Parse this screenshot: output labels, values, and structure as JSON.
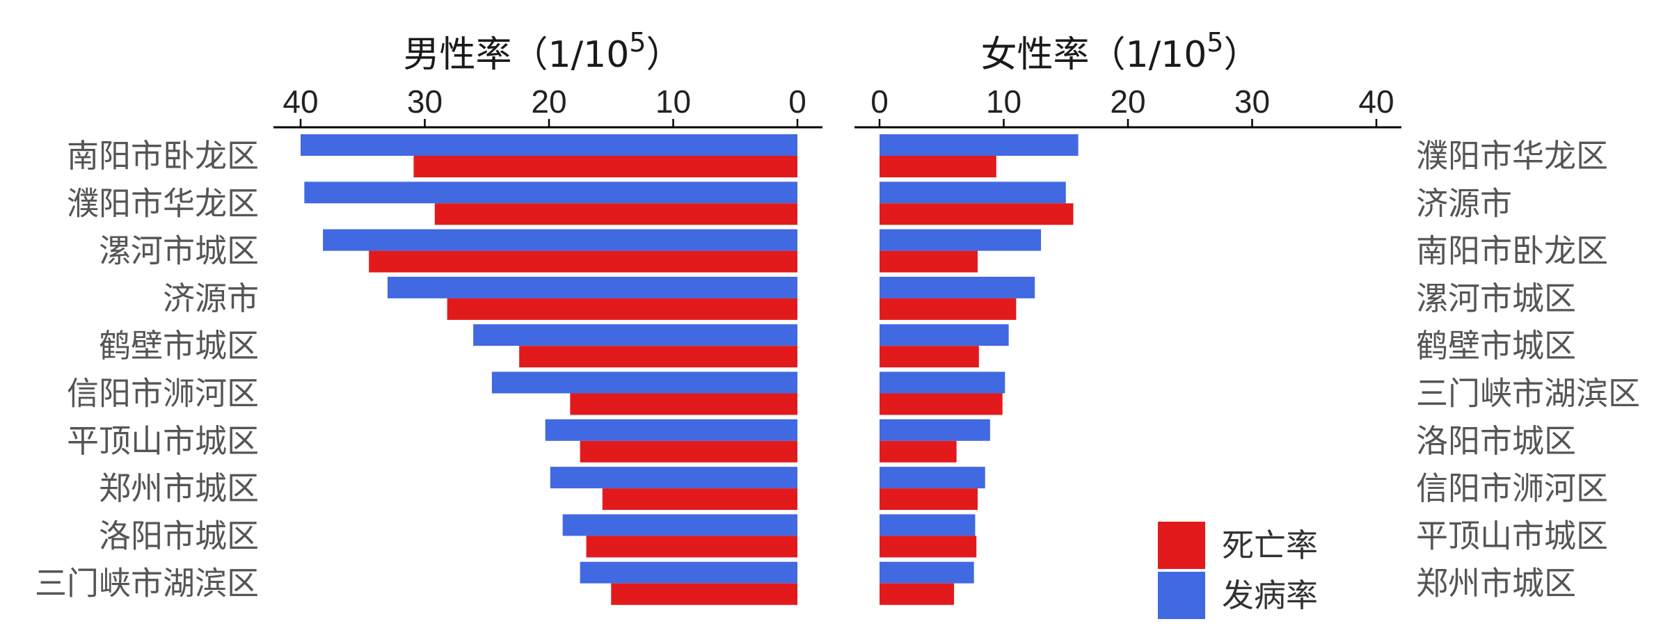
{
  "chart_data": [
    {
      "type": "bar",
      "orientation": "horizontal",
      "panel": "male",
      "title": "男性率（1/10",
      "title_exp": "5",
      "title_close": "）",
      "xlim": [
        0,
        40
      ],
      "xaxis_reversed": true,
      "ticks": [
        "40",
        "30",
        "20",
        "10",
        "0"
      ],
      "categories": [
        "南阳市卧龙区",
        "濮阳市华龙区",
        "漯河市城区",
        "济源市",
        "鹤壁市城区",
        "信阳市浉河区",
        "平顶山市城区",
        "郑州市城区",
        "洛阳市城区",
        "三门峡市湖滨区"
      ],
      "series": [
        {
          "name": "发病率",
          "color": "#4169e1",
          "values": [
            40.0,
            39.7,
            38.2,
            33.0,
            26.1,
            24.6,
            20.3,
            19.9,
            18.9,
            17.5
          ]
        },
        {
          "name": "死亡率",
          "color": "#e31a1c",
          "values": [
            30.9,
            29.2,
            34.5,
            28.2,
            22.4,
            18.3,
            17.5,
            15.7,
            17.0,
            15.0
          ]
        }
      ]
    },
    {
      "type": "bar",
      "orientation": "horizontal",
      "panel": "female",
      "title": "女性率（1/10",
      "title_exp": "5",
      "title_close": "）",
      "xlim": [
        0,
        42
      ],
      "ticks": [
        "0",
        "10",
        "20",
        "30",
        "40"
      ],
      "categories": [
        "濮阳市华龙区",
        "济源市",
        "南阳市卧龙区",
        "漯河市城区",
        "鹤壁市城区",
        "三门峡市湖滨区",
        "洛阳市城区",
        "信阳市浉河区",
        "平顶山市城区",
        "郑州市城区"
      ],
      "series": [
        {
          "name": "发病率",
          "color": "#4169e1",
          "values": [
            16.0,
            15.0,
            13.0,
            12.5,
            10.4,
            10.1,
            8.9,
            8.5,
            7.7,
            7.6
          ]
        },
        {
          "name": "死亡率",
          "color": "#e31a1c",
          "values": [
            9.4,
            15.6,
            7.9,
            11.0,
            8.0,
            9.9,
            6.2,
            7.9,
            7.8,
            6.0
          ]
        }
      ]
    }
  ],
  "legend": {
    "items": [
      {
        "label": "死亡率",
        "color": "#e31a1c"
      },
      {
        "label": "发病率",
        "color": "#4169e1"
      }
    ]
  }
}
